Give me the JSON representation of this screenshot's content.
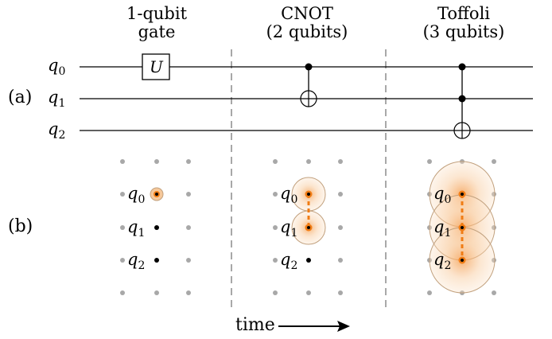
{
  "headers": {
    "single": [
      "1-qubit",
      "gate"
    ],
    "cnot": [
      "CNOT",
      "(2 qubits)"
    ],
    "toffoli": [
      "Toffoli",
      "(3 qubits)"
    ]
  },
  "row_labels": {
    "a": "(a)",
    "b": "(b)"
  },
  "qubits": [
    {
      "base": "q",
      "index": "0"
    },
    {
      "base": "q",
      "index": "1"
    },
    {
      "base": "q",
      "index": "2"
    }
  ],
  "gate_label": "U",
  "time_label": "time",
  "colors": {
    "orange": "#f07c14",
    "halo_fill": "#f6c89a",
    "halo_stroke": "#c2a17e",
    "grid_dot": "#a8a8a8",
    "divider": "#8c8c8c"
  }
}
